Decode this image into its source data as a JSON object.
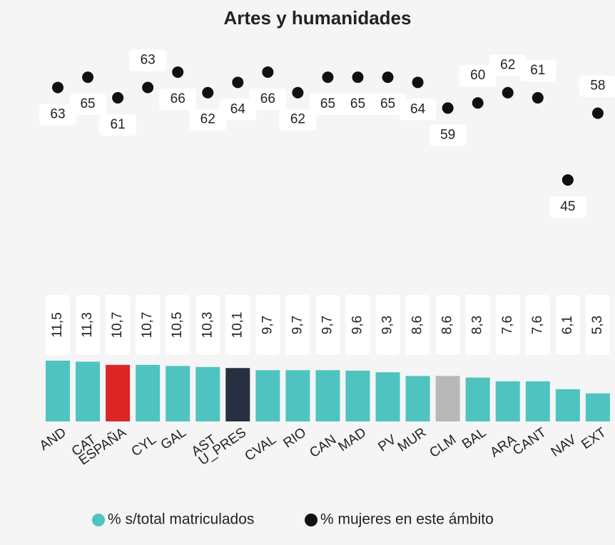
{
  "chart_data": {
    "type": "bar_dot",
    "title": "Artes y humanidades",
    "categories": [
      "AND",
      "CAT",
      "ESPAÑA",
      "CYL",
      "GAL",
      "AST",
      "U_PRES",
      "CVAL",
      "RIO",
      "CAN",
      "MAD",
      "PV",
      "MUR",
      "CLM",
      "BAL",
      "ARA",
      "CANT",
      "NAV",
      "EXT"
    ],
    "series": [
      {
        "name": "% s/total matriculados",
        "color": "#4fc3c0",
        "colors": [
          "#4fc3c0",
          "#4fc3c0",
          "#dc2626",
          "#4fc3c0",
          "#4fc3c0",
          "#4fc3c0",
          "#263040",
          "#4fc3c0",
          "#4fc3c0",
          "#4fc3c0",
          "#4fc3c0",
          "#4fc3c0",
          "#4fc3c0",
          "#b8b8b8",
          "#4fc3c0",
          "#4fc3c0",
          "#4fc3c0",
          "#4fc3c0",
          "#4fc3c0"
        ],
        "values": [
          11.5,
          11.3,
          10.7,
          10.7,
          10.5,
          10.3,
          10.1,
          9.7,
          9.7,
          9.7,
          9.6,
          9.3,
          8.6,
          8.6,
          8.3,
          7.6,
          7.6,
          6.1,
          5.3
        ],
        "value_labels": [
          "11,5",
          "11,3",
          "10,7",
          "10,7",
          "10,5",
          "10,3",
          "10,1",
          "9,7",
          "9,7",
          "9,7",
          "9,6",
          "9,3",
          "8,6",
          "8,6",
          "8,3",
          "7,6",
          "7,6",
          "6,1",
          "5,3"
        ]
      },
      {
        "name": "% mujeres en este ámbito",
        "color": "#111111",
        "values": [
          63,
          65,
          61,
          63,
          66,
          62,
          64,
          66,
          62,
          65,
          65,
          65,
          64,
          59,
          60,
          62,
          61,
          45,
          58
        ]
      }
    ]
  }
}
